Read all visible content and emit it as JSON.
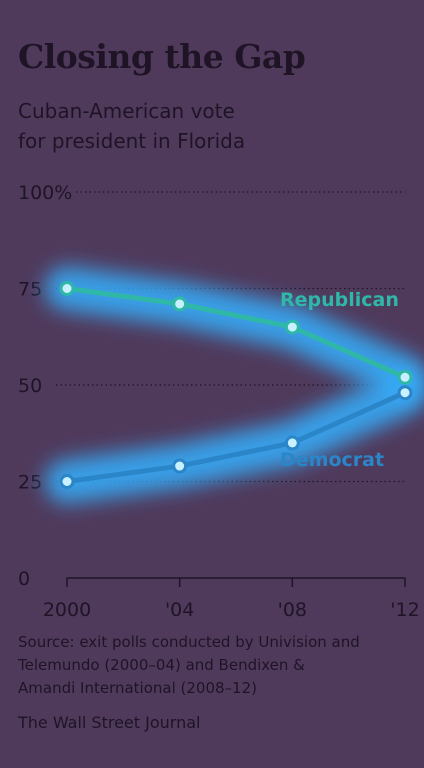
{
  "colors": {
    "background": "#503a5c",
    "text": "#1e1426",
    "republican": "#2fb8a8",
    "democrat": "#2a86c8",
    "glow": "#36b0ff"
  },
  "chart_data": {
    "type": "line",
    "title": "Closing the Gap",
    "subtitle_lines": [
      "Cuban-American vote",
      "for president in Florida"
    ],
    "x": [
      "2000",
      "'04",
      "'08",
      "'12"
    ],
    "series": [
      {
        "name": "Republican",
        "values": [
          75,
          71,
          65,
          52
        ]
      },
      {
        "name": "Democrat",
        "values": [
          25,
          29,
          35,
          48
        ]
      }
    ],
    "yticks": [
      "0",
      "25",
      "50",
      "75",
      "100%"
    ],
    "ytick_values": [
      0,
      25,
      50,
      75,
      100
    ],
    "ylim": [
      0,
      100
    ],
    "grid": true,
    "series_labels_inline": true,
    "source_lines": [
      "Source: exit polls conducted by Univision and",
      "Telemundo (2000–04) and Bendixen &",
      "Amandi International (2008–12)"
    ],
    "credit": "The Wall Street Journal"
  }
}
